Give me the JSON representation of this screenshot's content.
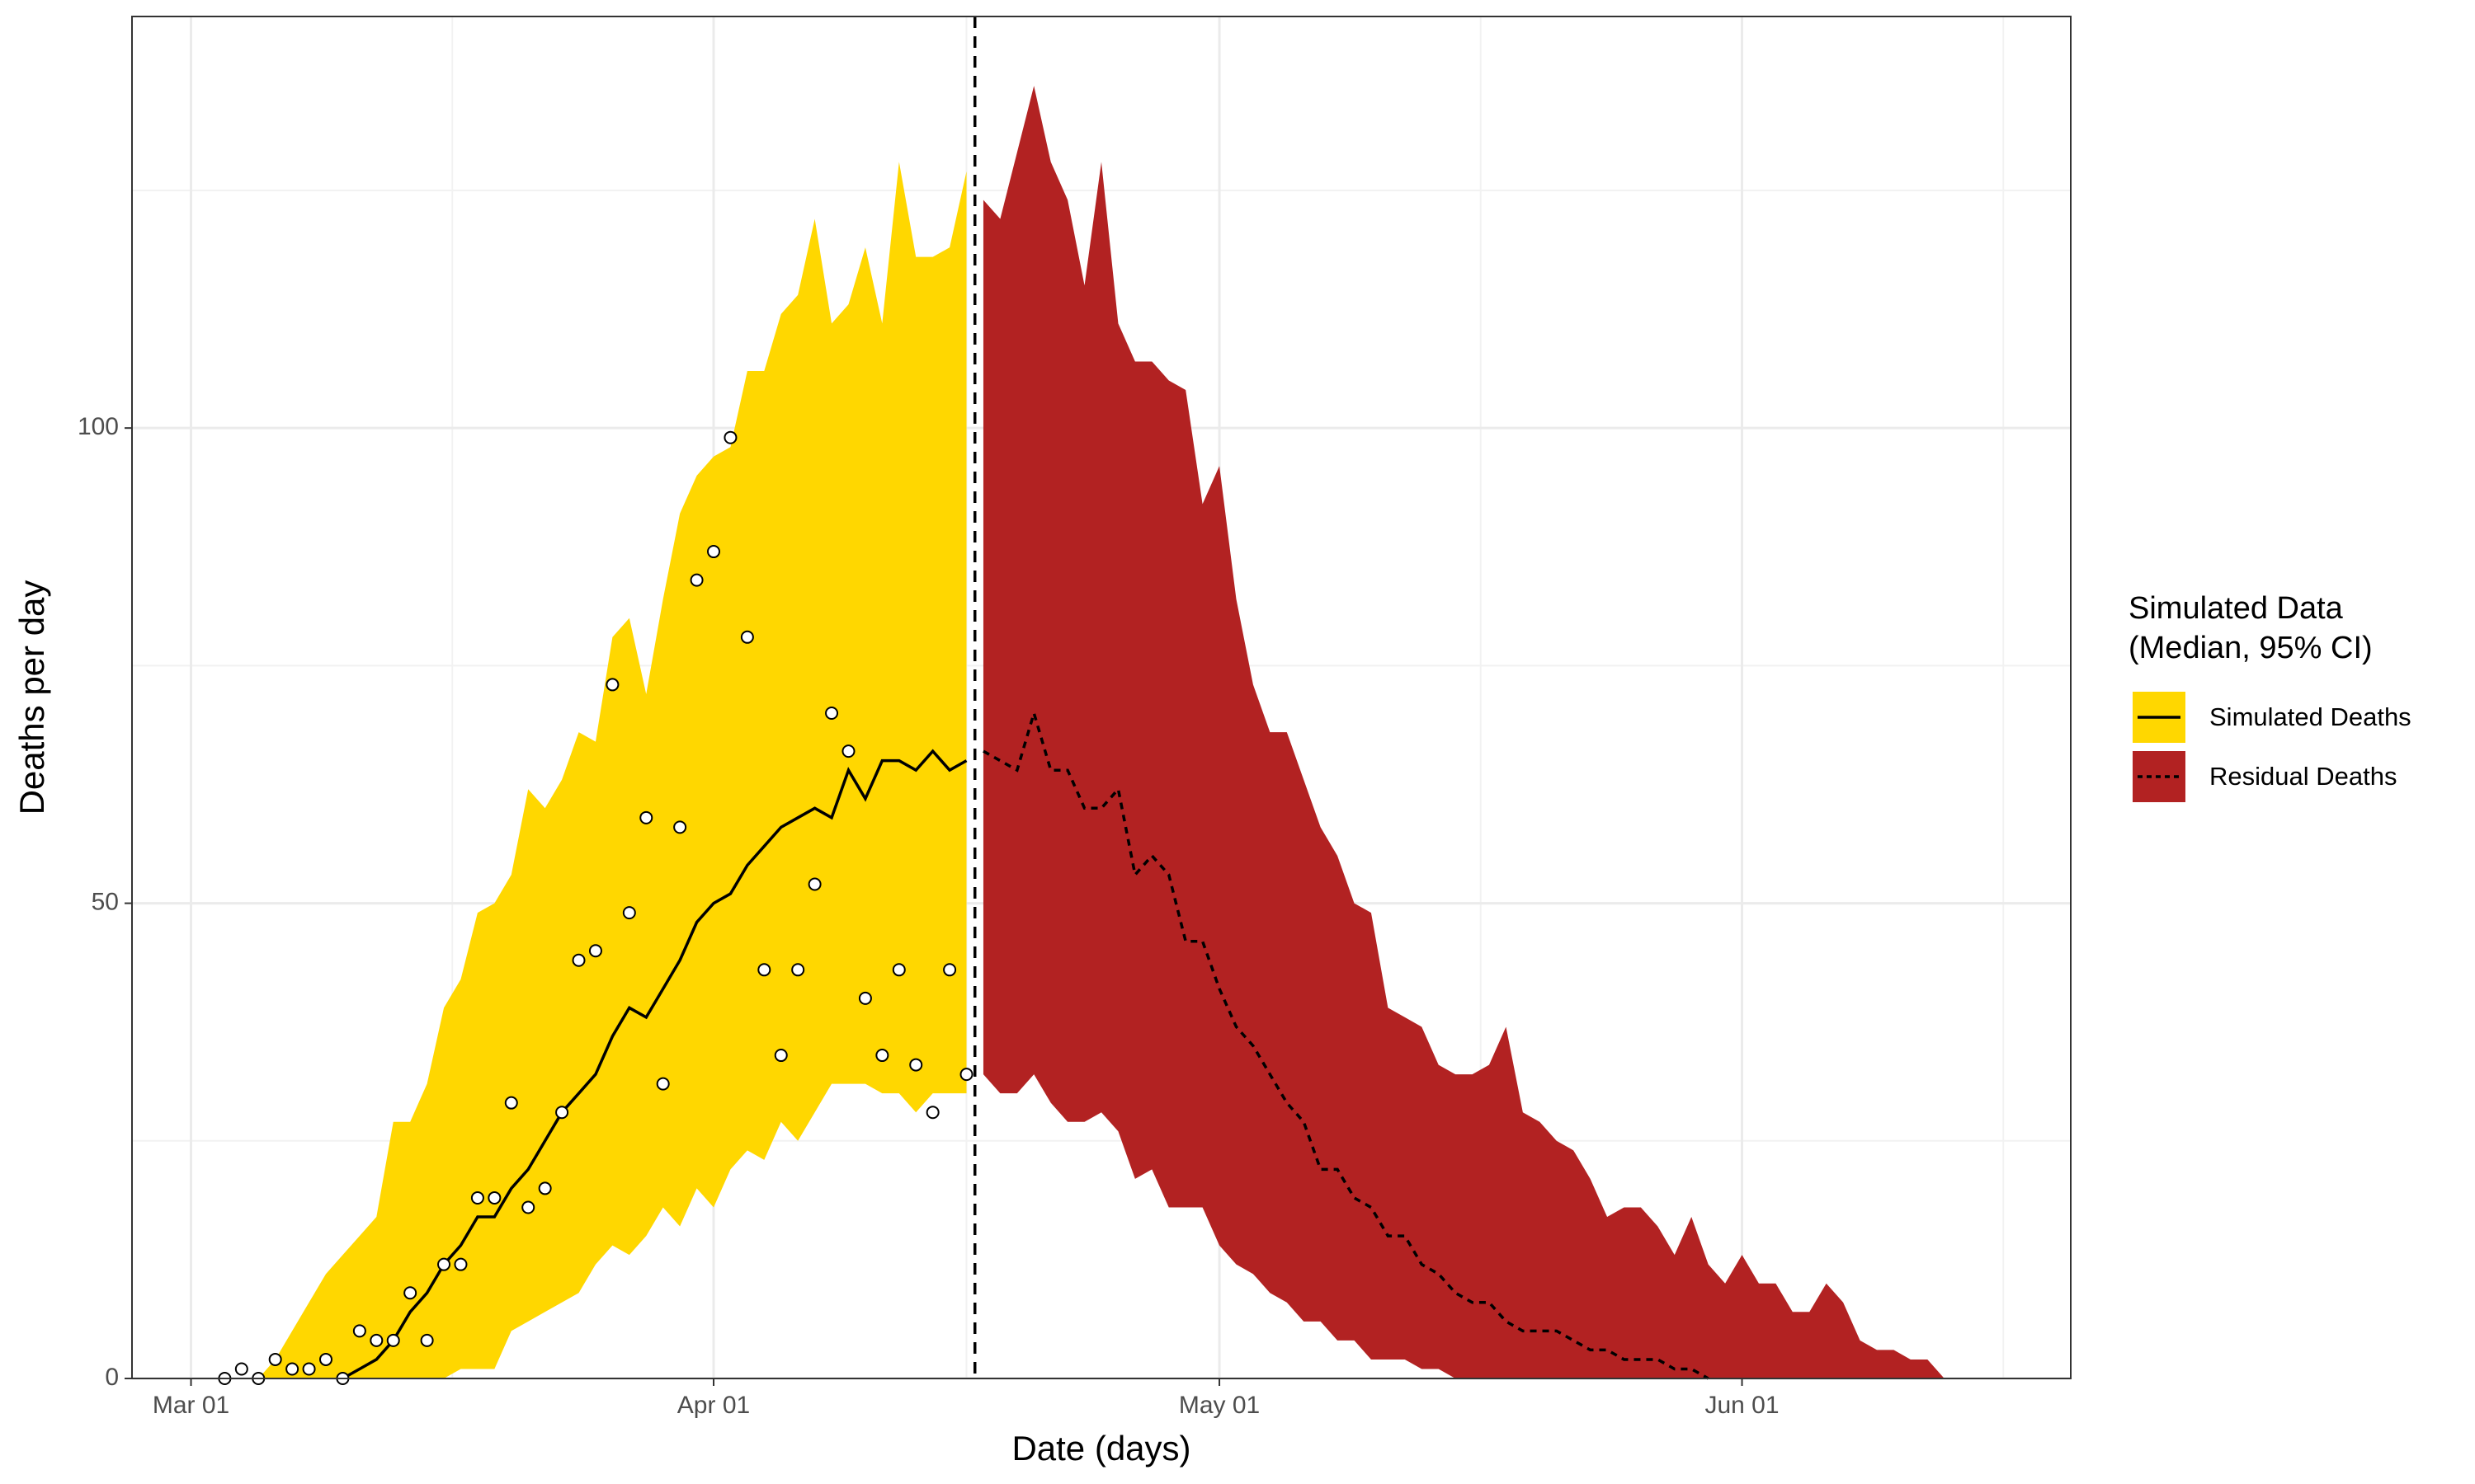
{
  "chart_data": {
    "type": "band",
    "x_label": "Date (days)",
    "y_label": "Deaths per day",
    "legend_title": [
      "Simulated Data",
      "(Median, 95% CI)"
    ],
    "xlim": [
      -3.5,
      111.5
    ],
    "xticks": [
      {
        "value": 0,
        "label": "Mar 01"
      },
      {
        "value": 31,
        "label": "Apr 01"
      },
      {
        "value": 61,
        "label": "May 01"
      },
      {
        "value": 92,
        "label": "Jun 01"
      }
    ],
    "ylim": [
      0,
      143.3
    ],
    "yticks": [
      0,
      50,
      100
    ],
    "grid": true,
    "legend": "right",
    "vline": 46.5,
    "series": [
      {
        "name": "Simulated Deaths",
        "color": "#FFD700",
        "linestyle": "solid",
        "x": [
          4,
          5,
          6,
          7,
          8,
          9,
          10,
          11,
          12,
          13,
          14,
          15,
          16,
          17,
          18,
          19,
          20,
          21,
          22,
          23,
          24,
          25,
          26,
          27,
          28,
          29,
          30,
          31,
          32,
          33,
          34,
          35,
          36,
          37,
          38,
          39,
          40,
          41,
          42,
          43,
          44,
          45,
          46
        ],
        "upper": [
          0,
          2,
          5,
          8,
          11,
          13,
          15,
          17,
          27,
          27,
          31,
          39,
          42,
          49,
          50,
          53,
          62,
          60,
          63,
          68,
          67,
          78,
          80,
          72,
          82,
          91,
          95,
          97,
          98,
          106,
          106,
          112,
          114,
          122,
          111,
          113,
          119,
          111,
          128,
          118,
          118,
          119,
          127
        ],
        "lower": [
          0,
          0,
          0,
          0,
          0,
          0,
          0,
          0,
          0,
          0,
          0,
          0,
          1,
          1,
          1,
          5,
          6,
          7,
          8,
          9,
          12,
          14,
          13,
          15,
          18,
          16,
          20,
          18,
          22,
          24,
          23,
          27,
          25,
          28,
          31,
          31,
          31,
          30,
          30,
          28,
          30,
          30,
          30
        ],
        "median": [
          null,
          null,
          null,
          null,
          null,
          0,
          1,
          2,
          4,
          7,
          9,
          12,
          14,
          17,
          17,
          20,
          22,
          25,
          28,
          30,
          32,
          36,
          39,
          38,
          41,
          44,
          48,
          50,
          51,
          54,
          56,
          58,
          59,
          60,
          59,
          64,
          61,
          65,
          65,
          64,
          66,
          64,
          65
        ]
      },
      {
        "name": "Residual Deaths",
        "color": "#B22222",
        "linestyle": "dashed",
        "x": [
          47,
          48,
          49,
          50,
          51,
          52,
          53,
          54,
          55,
          56,
          57,
          58,
          59,
          60,
          61,
          62,
          63,
          64,
          65,
          66,
          67,
          68,
          69,
          70,
          71,
          72,
          73,
          74,
          75,
          76,
          77,
          78,
          79,
          80,
          81,
          82,
          83,
          84,
          85,
          86,
          87,
          88,
          89,
          90,
          91,
          92,
          93,
          94,
          95,
          96,
          97,
          98,
          99,
          100,
          101,
          102,
          103,
          104
        ],
        "upper": [
          124,
          122,
          129,
          136,
          128,
          124,
          115,
          128,
          111,
          107,
          107,
          105,
          104,
          92,
          96,
          82,
          73,
          68,
          68,
          63,
          58,
          55,
          50,
          49,
          39,
          38,
          37,
          33,
          32,
          32,
          33,
          37,
          28,
          27,
          25,
          24,
          21,
          17,
          18,
          18,
          16,
          13,
          17,
          12,
          10,
          13,
          10,
          10,
          7,
          7,
          10,
          8,
          4,
          3,
          3,
          2,
          2,
          0
        ],
        "lower": [
          32,
          30,
          30,
          32,
          29,
          27,
          27,
          28,
          26,
          21,
          22,
          18,
          18,
          18,
          14,
          12,
          11,
          9,
          8,
          6,
          6,
          4,
          4,
          2,
          2,
          2,
          1,
          1,
          0,
          0,
          0,
          0,
          0,
          0,
          0,
          0,
          0,
          0,
          0,
          0,
          0,
          0,
          0,
          0,
          0,
          0,
          0,
          0,
          0,
          0,
          0,
          0,
          0,
          0,
          0,
          0,
          0,
          0
        ],
        "median": [
          66,
          65,
          64,
          70,
          64,
          64,
          60,
          60,
          62,
          53,
          55,
          53,
          46,
          46,
          41,
          37,
          35,
          32,
          29,
          27,
          22,
          22,
          19,
          18,
          15,
          15,
          12,
          11,
          9,
          8,
          8,
          6,
          5,
          5,
          5,
          4,
          3,
          3,
          2,
          2,
          2,
          1,
          1,
          0,
          null,
          null,
          null,
          null,
          null,
          null,
          null,
          null,
          null,
          null,
          null,
          null,
          null,
          null
        ]
      }
    ],
    "points": {
      "x": [
        2,
        3,
        4,
        5,
        6,
        7,
        8,
        9,
        10,
        11,
        12,
        13,
        14,
        15,
        16,
        17,
        18,
        19,
        20,
        21,
        22,
        23,
        24,
        25,
        26,
        27,
        28,
        29,
        30,
        31,
        32,
        33,
        34,
        35,
        36,
        37,
        38,
        39,
        40,
        41,
        42,
        43,
        44,
        45,
        46
      ],
      "values": [
        0,
        1,
        0,
        2,
        1,
        1,
        2,
        0,
        5,
        4,
        4,
        9,
        4,
        12,
        12,
        19,
        19,
        29,
        18,
        20,
        28,
        44,
        45,
        73,
        49,
        59,
        31,
        58,
        84,
        87,
        99,
        78,
        43,
        34,
        43,
        52,
        70,
        66,
        40,
        34,
        43,
        33,
        28,
        43,
        32
      ]
    }
  }
}
